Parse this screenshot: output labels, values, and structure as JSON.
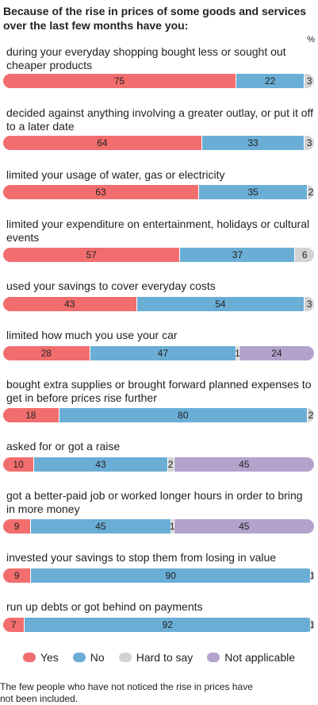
{
  "chart_data": {
    "type": "bar",
    "orientation": "horizontal-stacked-100",
    "title": "Because of the rise in prices of some goods and services over the last few months have you:",
    "unit_label": "%",
    "legend_position": "bottom",
    "series": [
      {
        "name": "Yes",
        "color": "#f26d6d"
      },
      {
        "name": "No",
        "color": "#6aaed6"
      },
      {
        "name": "Hard to say",
        "color": "#d3d3d3"
      },
      {
        "name": "Not applicable",
        "color": "#b3a2cc"
      }
    ],
    "categories": [
      {
        "label": "during your everyday shopping bought less or sought out cheaper products",
        "values": [
          75,
          22,
          3,
          0
        ]
      },
      {
        "label": "decided against anything involving a greater outlay, or put it off to a later date",
        "values": [
          64,
          33,
          3,
          0
        ]
      },
      {
        "label": "limited your usage of water, gas or electricity",
        "values": [
          63,
          35,
          2,
          0
        ]
      },
      {
        "label": "limited your expenditure on entertainment, holidays or cultural events",
        "values": [
          57,
          37,
          6,
          0
        ]
      },
      {
        "label": "used your savings to cover everyday costs",
        "values": [
          43,
          54,
          3,
          0
        ]
      },
      {
        "label": "limited how much you use your car",
        "values": [
          28,
          47,
          1,
          24
        ]
      },
      {
        "label": "bought extra supplies or brought forward planned expenses to get in before prices rise further",
        "values": [
          18,
          80,
          2,
          0
        ]
      },
      {
        "label": "asked for or got a raise",
        "values": [
          10,
          43,
          2,
          45
        ]
      },
      {
        "label": "got a better-paid job or worked longer hours in order to bring in more money",
        "values": [
          9,
          45,
          1,
          45
        ]
      },
      {
        "label": "invested your savings to stop them from losing in value",
        "values": [
          9,
          90,
          1,
          0
        ]
      },
      {
        "label": "run up debts or got behind on payments",
        "values": [
          7,
          92,
          1,
          0
        ]
      }
    ]
  },
  "footnote": "The few people who have not noticed the rise in prices have not been included."
}
